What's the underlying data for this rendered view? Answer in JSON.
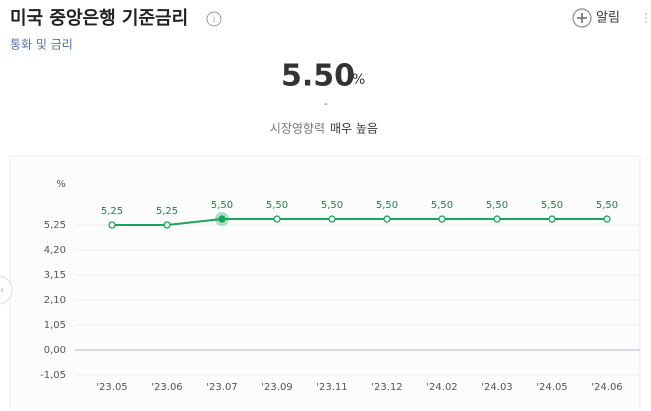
{
  "header": {
    "title": "미국 중앙은행 기준금리",
    "subtitle": "통화 및 금리",
    "alert": "알림"
  },
  "summary": {
    "value": "5.50",
    "unit": "%",
    "change": "-",
    "impact_label": "시장영향력",
    "impact_value": "매우 높음"
  },
  "chart_data": {
    "type": "line",
    "ylabel": "%",
    "categories": [
      "'23.05",
      "'23.06",
      "'23.07",
      "'23.09",
      "'23.11",
      "'23.12",
      "'24.02",
      "'24.03",
      "'24.05",
      "'24.06"
    ],
    "values": [
      5.25,
      5.25,
      5.5,
      5.5,
      5.5,
      5.5,
      5.5,
      5.5,
      5.5,
      5.5
    ],
    "value_labels": [
      "5,25",
      "5,25",
      "5,50",
      "5,50",
      "5,50",
      "5,50",
      "5,50",
      "5,50",
      "5,50",
      "5,50"
    ],
    "color": "#19a55a",
    "highlight": 2,
    "ylim": [
      -1.05,
      7.35
    ],
    "yticks": [
      {
        "value": -1.05,
        "label": "-1,05"
      },
      {
        "value": 0,
        "label": "0,00"
      },
      {
        "value": 1.05,
        "label": "1,05"
      },
      {
        "value": 2.1,
        "label": "2,10"
      },
      {
        "value": 3.15,
        "label": "3,15"
      },
      {
        "value": 4.2,
        "label": "4,20"
      },
      {
        "value": 5.25,
        "label": "5,25"
      }
    ],
    "grid": true
  }
}
